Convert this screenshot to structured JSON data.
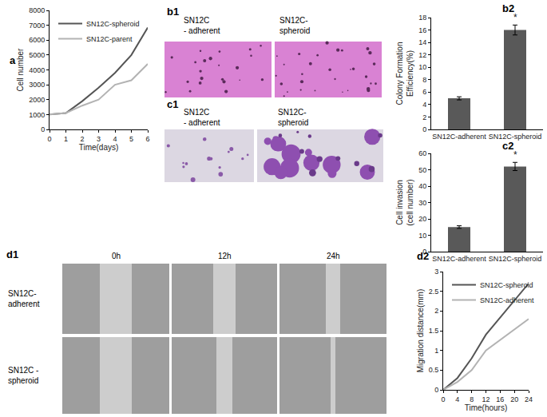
{
  "chart_data": [
    {
      "panel_label": "a",
      "type": "line",
      "x_label": "Time(days)",
      "y_label": "Cell number",
      "x": [
        0,
        1,
        2,
        3,
        4,
        5,
        6
      ],
      "series": [
        {
          "name": "SN12C-spheroid",
          "color": "#555555",
          "values": [
            1000,
            1100,
            1900,
            2800,
            3800,
            5000,
            6850
          ]
        },
        {
          "name": "SN12C-parent",
          "color": "#b3b3b3",
          "values": [
            1000,
            1100,
            1600,
            2000,
            3000,
            3300,
            4400
          ]
        }
      ],
      "xlim": [
        0,
        6
      ],
      "xticks": [
        0,
        1,
        2,
        3,
        4,
        5,
        6
      ],
      "ylim": [
        0,
        8000
      ],
      "yticks": [
        0,
        1000,
        2000,
        3000,
        4000,
        5000,
        6000,
        7000,
        8000
      ],
      "legend": "upper left",
      "grid": false
    },
    {
      "panel_label": "b2",
      "type": "bar",
      "y_label": "Colony Formation\nEfficiency(%)",
      "categories": [
        "SN12C-adherent",
        "SN12C-spheroid"
      ],
      "values": [
        5,
        16
      ],
      "error": [
        0.25,
        0.8
      ],
      "color": "#595959",
      "ylim": [
        0,
        18
      ],
      "yticks": [
        0,
        2,
        4,
        6,
        8,
        10,
        12,
        14,
        16,
        18
      ],
      "annotations": [
        {
          "category": "SN12C-spheroid",
          "text": "*"
        }
      ],
      "grid": false
    },
    {
      "panel_label": "c2",
      "type": "bar",
      "y_label": "Cell invasion\n(cell number)",
      "categories": [
        "SN12C-adherent",
        "SN12C-spheroid"
      ],
      "values": [
        15,
        52
      ],
      "error": [
        0.8,
        2.5
      ],
      "color": "#595959",
      "ylim": [
        0,
        60
      ],
      "yticks": [
        0,
        10,
        20,
        30,
        40,
        50,
        60
      ],
      "annotations": [
        {
          "category": "SN12C-spheroid",
          "text": "*"
        }
      ],
      "grid": false
    },
    {
      "panel_label": "d2",
      "type": "line",
      "x_label": "Time(hours)",
      "y_label": "Migration distance(mm)",
      "x": [
        0,
        4,
        8,
        12,
        24
      ],
      "series": [
        {
          "name": "SN12C-spheroid",
          "color": "#555555",
          "values": [
            0,
            0.3,
            0.8,
            1.4,
            2.7
          ]
        },
        {
          "name": "SN12C-adherent",
          "color": "#b3b3b3",
          "values": [
            0,
            0.2,
            0.5,
            1.0,
            1.8
          ]
        }
      ],
      "xlim": [
        0,
        24
      ],
      "xticks": [
        0,
        4,
        8,
        12,
        16,
        20,
        24
      ],
      "ylim": [
        0,
        3
      ],
      "yticks": [
        0,
        0.5,
        1,
        1.5,
        2,
        2.5,
        3
      ],
      "legend": "upper left",
      "grid": false
    }
  ],
  "image_panels": [
    {
      "panel_label": "b1",
      "labels": [
        "SN12C\n- adherent",
        "SN12C-\nspheroid"
      ]
    },
    {
      "panel_label": "c1",
      "labels": [
        "SN12C\n- adherent",
        "SN12C-\nspheroid"
      ]
    },
    {
      "panel_label": "d1",
      "columns": [
        "0h",
        "12h",
        "24h"
      ],
      "rows": [
        "SN12C-\nadherent",
        "SN12C -\nspheroid"
      ]
    }
  ]
}
